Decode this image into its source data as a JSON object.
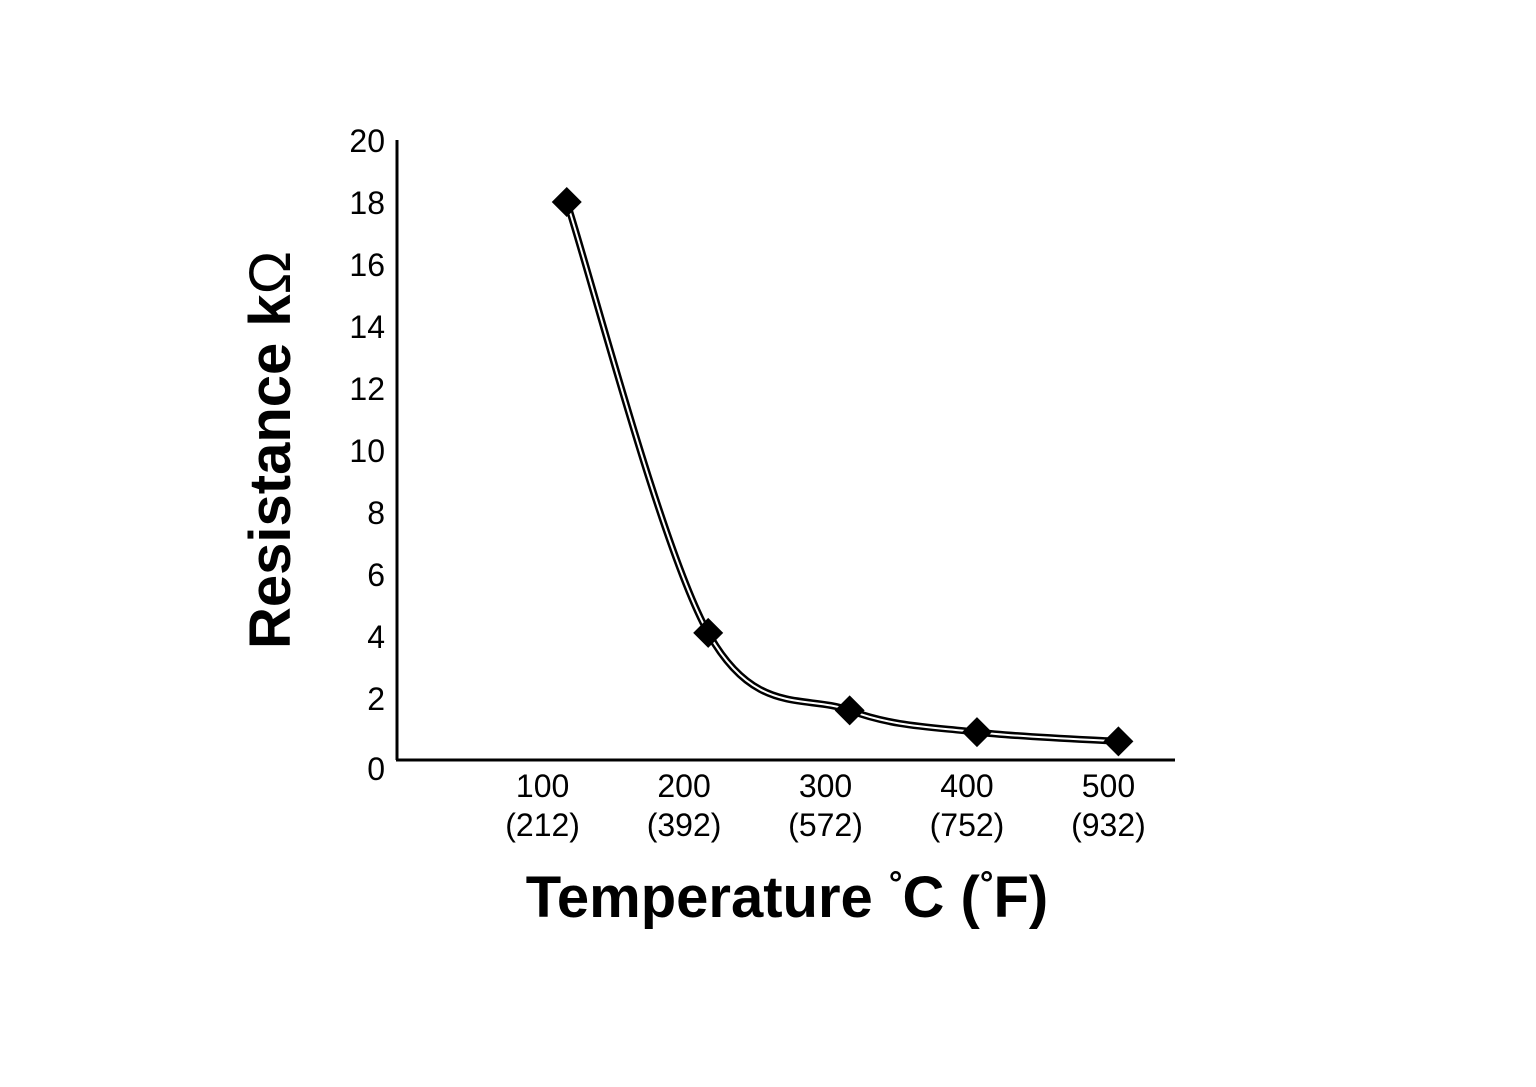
{
  "chart_data": {
    "type": "line",
    "title": "",
    "xlabel": "Temperature °C (°F)",
    "ylabel": "Resistance kΩ",
    "x_label_parts": {
      "main": "Temperature ",
      "unit_c": "C (",
      "unit_f": "F)",
      "deg": "°"
    },
    "y_label_parts": {
      "main": "Resistance k",
      "unit": "Ω"
    },
    "x_tick_labels": [
      {
        "c": "100",
        "f": "(212)"
      },
      {
        "c": "200",
        "f": "(392)"
      },
      {
        "c": "300",
        "f": "(572)"
      },
      {
        "c": "400",
        "f": "(752)"
      },
      {
        "c": "500",
        "f": "(932)"
      }
    ],
    "x_ticks": [
      100,
      200,
      300,
      400,
      500
    ],
    "y_ticks": [
      0,
      2,
      4,
      6,
      8,
      10,
      12,
      14,
      16,
      18,
      20
    ],
    "xlim": [
      -10,
      540
    ],
    "ylim": [
      0,
      20
    ],
    "series": [
      {
        "name": "Resistance",
        "marker": "diamond",
        "x": [
          110,
          210,
          310,
          400,
          500
        ],
        "y": [
          18,
          4.1,
          1.6,
          0.9,
          0.6
        ]
      }
    ],
    "grid": false,
    "legend": "none"
  }
}
